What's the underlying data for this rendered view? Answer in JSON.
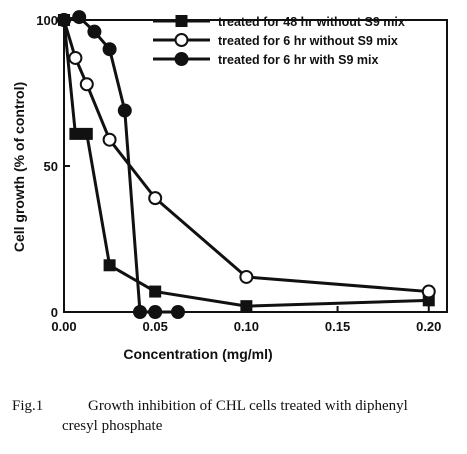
{
  "chart_data": {
    "type": "line",
    "xlabel": "Concentration (mg/ml)",
    "ylabel": "Cell growth (% of control)",
    "xlim": [
      0,
      0.21
    ],
    "ylim": [
      0,
      100
    ],
    "x_ticks": [
      0.0,
      0.05,
      0.1,
      0.15,
      0.2
    ],
    "x_tick_labels": [
      "0.00",
      "0.05",
      "0.10",
      "0.15",
      "0.20"
    ],
    "y_ticks": [
      0,
      50,
      100
    ],
    "y_tick_labels": [
      "0",
      "50",
      "100"
    ],
    "grid": false,
    "legend_position": "top-right",
    "series": [
      {
        "name": "treated for 48 hr without S9 mix",
        "marker": "filled-square",
        "x": [
          0,
          0.00625,
          0.0125,
          0.025,
          0.05,
          0.1,
          0.2
        ],
        "y": [
          100,
          61,
          61,
          16,
          7,
          2,
          4
        ]
      },
      {
        "name": "treated for 6 hr without S9 mix",
        "marker": "open-circle",
        "x": [
          0,
          0.00625,
          0.0125,
          0.025,
          0.05,
          0.1,
          0.2
        ],
        "y": [
          100,
          87,
          78,
          59,
          39,
          12,
          7
        ]
      },
      {
        "name": "treated for 6 hr with S9 mix",
        "marker": "filled-circle",
        "x": [
          0,
          0.00833,
          0.01667,
          0.025,
          0.03333,
          0.04167,
          0.05,
          0.0625
        ],
        "y": [
          100,
          101,
          96,
          90,
          69,
          0,
          0,
          0
        ]
      }
    ]
  },
  "caption": {
    "label": "Fig.1",
    "line1": "Growth inhibition of CHL cells treated with diphenyl",
    "line2": "cresyl phosphate"
  }
}
